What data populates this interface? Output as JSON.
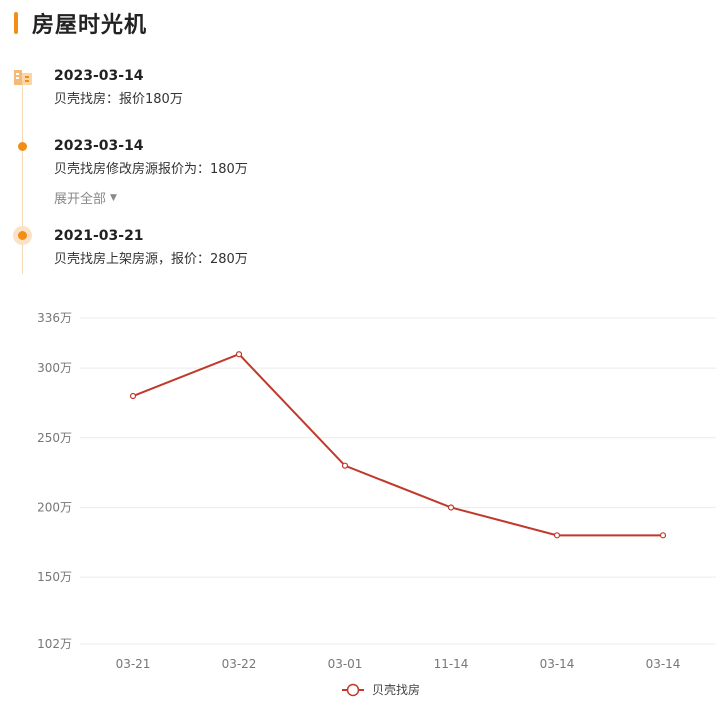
{
  "header": {
    "title": "房屋时光机"
  },
  "timeline": {
    "events": [
      {
        "date": "2023-03-14",
        "desc": "贝壳找房：报价180万"
      },
      {
        "date": "2023-03-14",
        "desc": "贝壳找房修改房源报价为：180万"
      },
      {
        "date": "2021-03-21",
        "desc": "贝壳找房上架房源，报价：280万"
      }
    ],
    "expand_label": "展开全部"
  },
  "colors": {
    "accent": "#f08e16",
    "series": "#c0392b"
  },
  "chart_data": {
    "type": "line",
    "categories": [
      "03-21",
      "03-22",
      "03-01",
      "11-14",
      "03-14",
      "03-14"
    ],
    "series": [
      {
        "name": "贝壳找房",
        "values": [
          280,
          310,
          230,
          200,
          180,
          180
        ]
      }
    ],
    "ylim": [
      102,
      336
    ],
    "yticks": [
      102,
      150,
      200,
      250,
      300,
      336
    ],
    "ytick_labels": [
      "102万",
      "150万",
      "200万",
      "250万",
      "300万",
      "336万"
    ],
    "grid": true,
    "legend": "bottom-center"
  }
}
